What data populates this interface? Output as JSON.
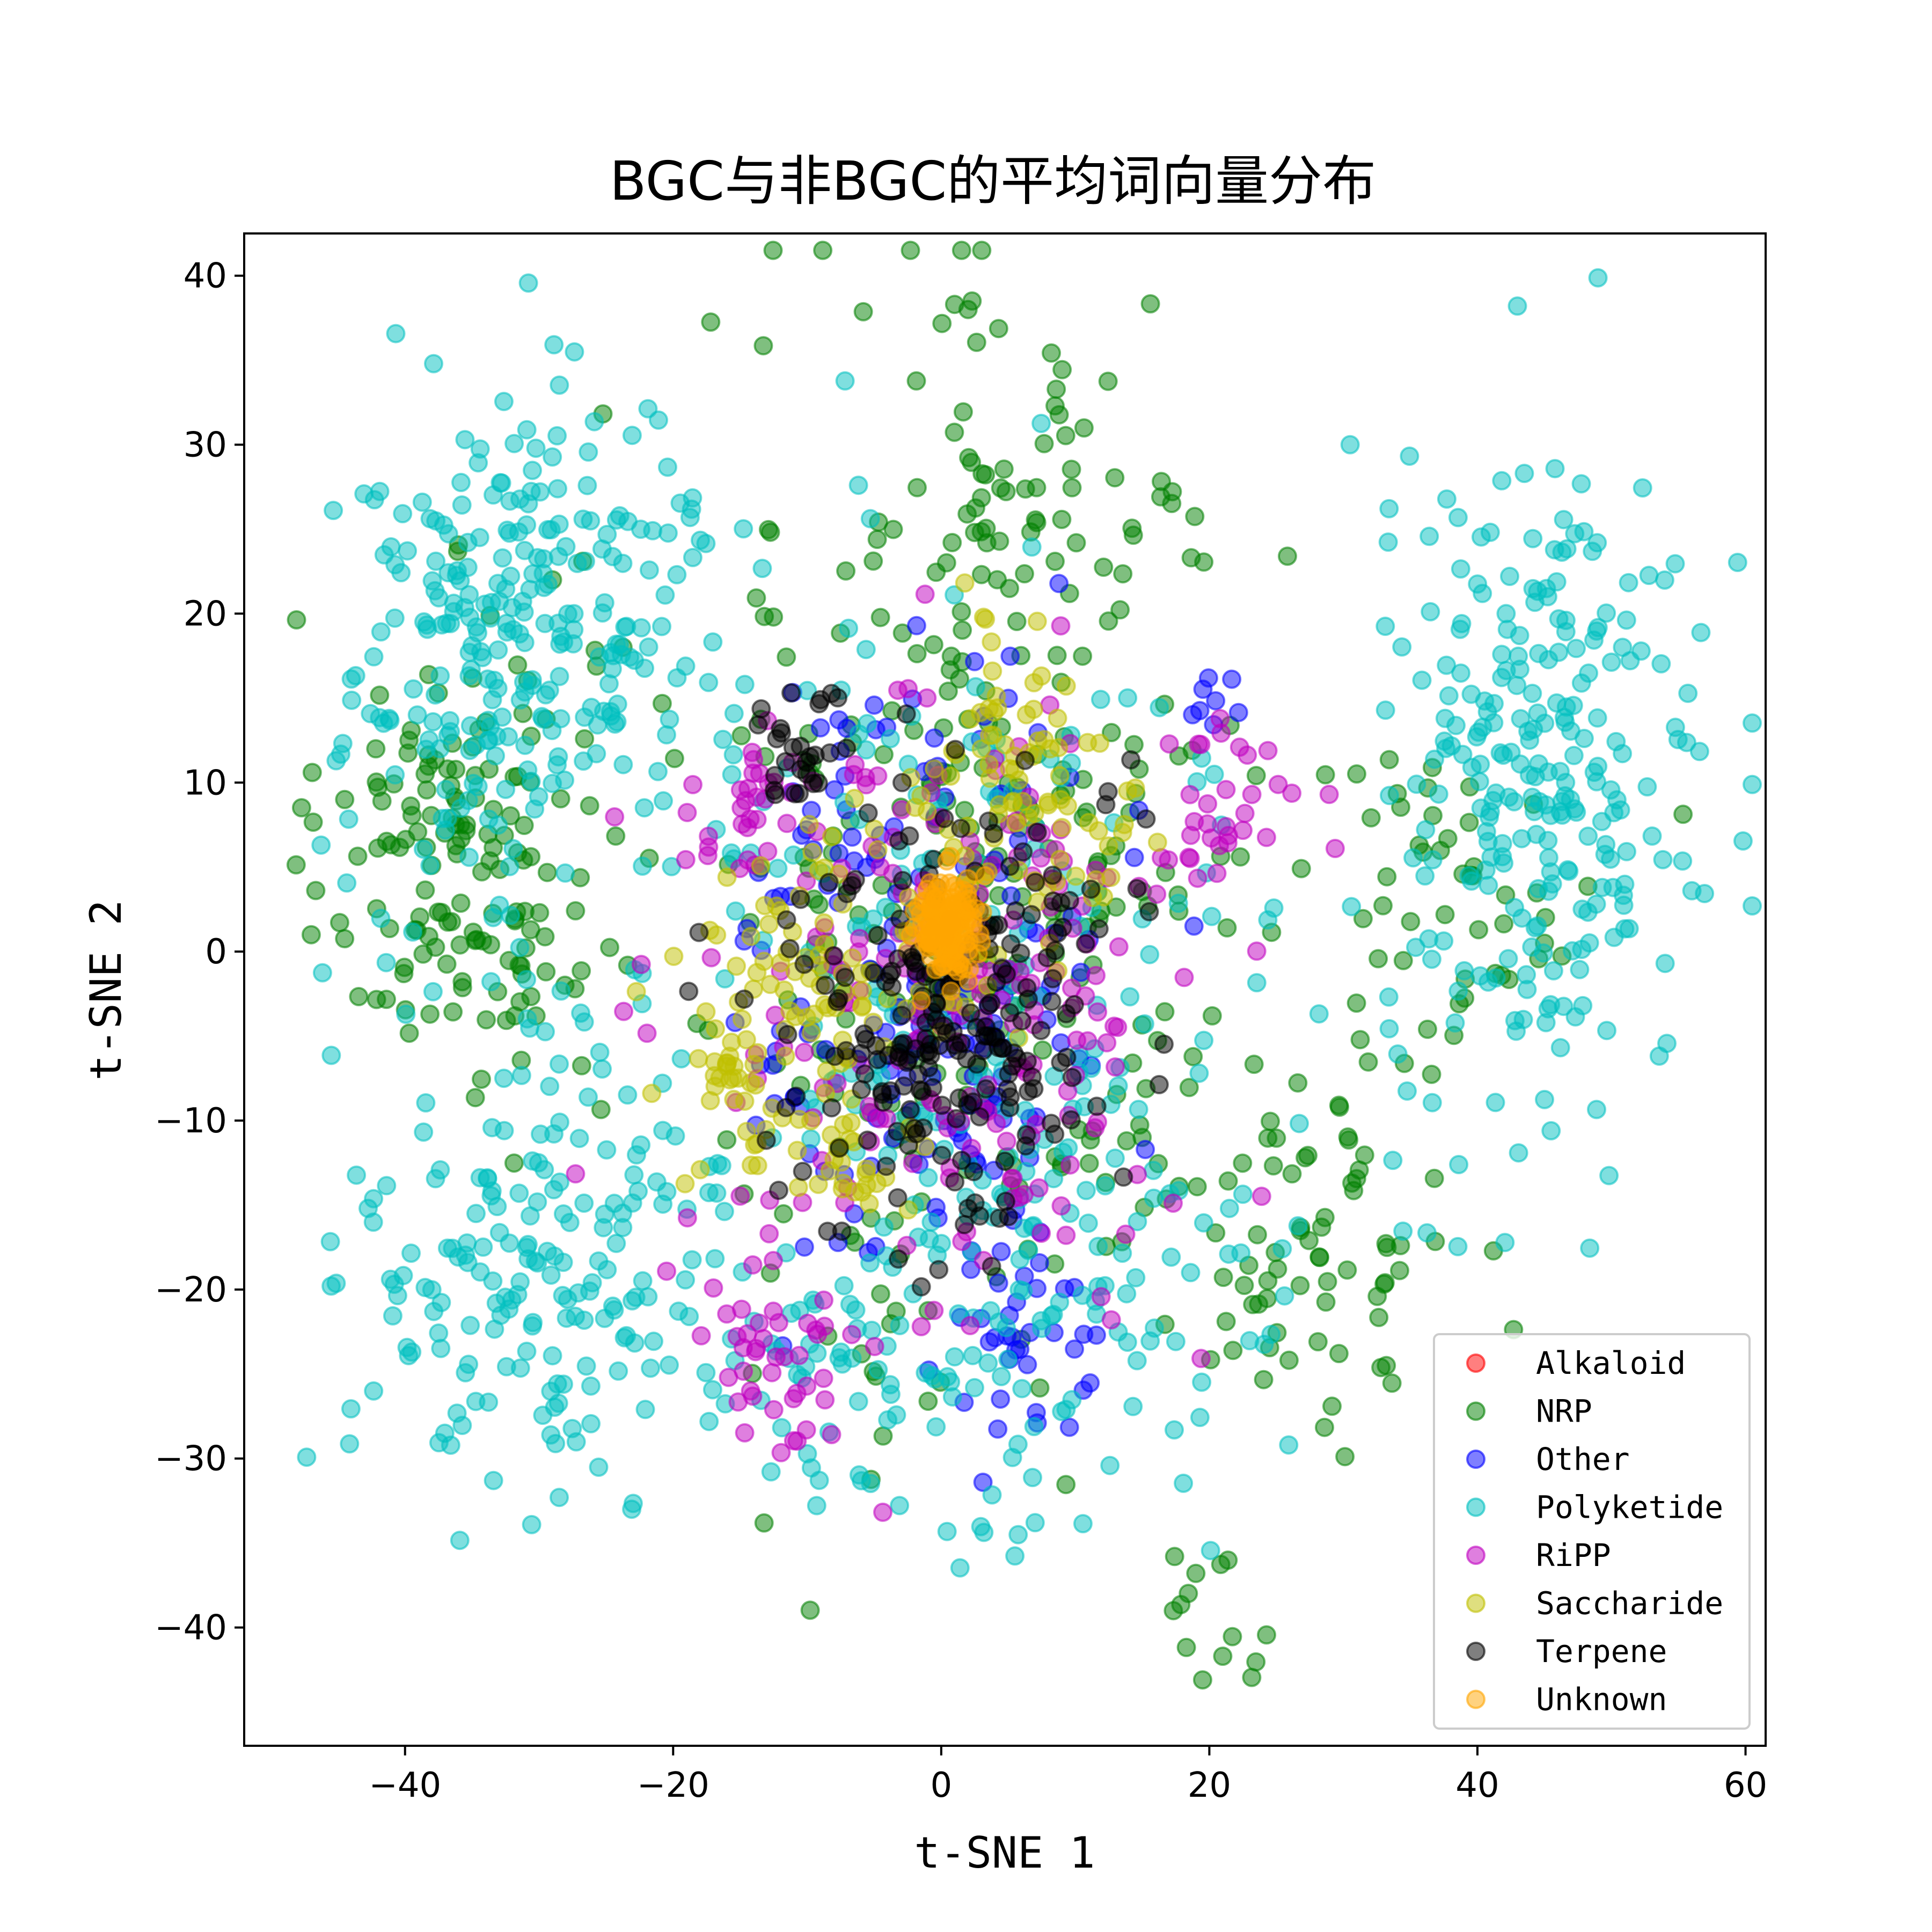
{
  "chart_data": {
    "type": "scatter",
    "title": "BGC与非BGC的平均词向量分布",
    "xlabel": "t-SNE 1",
    "ylabel": "t-SNE 2",
    "xlim": [
      -52,
      61.5
    ],
    "ylim": [
      -47,
      42.5
    ],
    "xticks": [
      -40,
      -20,
      0,
      20,
      40,
      60
    ],
    "yticks": [
      -40,
      -30,
      -20,
      -10,
      0,
      10,
      20,
      30,
      40
    ],
    "grid": false,
    "legend_position": "bottom-right",
    "series": [
      {
        "name": "Alkaloid",
        "color": "#ff0000",
        "clusters": []
      },
      {
        "name": "NRP",
        "color": "#008000",
        "clusters": [
          {
            "cx": -36,
            "cy": 6,
            "sx": 5,
            "sy": 7,
            "n": 150
          },
          {
            "cx": 3,
            "cy": 5,
            "sx": 11,
            "sy": 17,
            "n": 320
          },
          {
            "cx": 28,
            "cy": -17,
            "sx": 5,
            "sy": 6,
            "n": 70
          },
          {
            "cx": 38,
            "cy": 3,
            "sx": 6,
            "sy": 5,
            "n": 50
          },
          {
            "cx": 8,
            "cy": 28,
            "sx": 5,
            "sy": 3,
            "n": 25
          },
          {
            "cx": 20,
            "cy": -39,
            "sx": 2,
            "sy": 2,
            "n": 12
          }
        ],
        "points": [
          [
            1,
            38.3
          ],
          [
            2,
            38
          ],
          [
            2.3,
            38.5
          ],
          [
            19.5,
            -43.1
          ],
          [
            21,
            -41.7
          ],
          [
            -47,
            1
          ],
          [
            -44.5,
            9
          ],
          [
            -29,
            22
          ]
        ]
      },
      {
        "name": "Other",
        "color": "#0000ff",
        "clusters": [
          {
            "cx": -1,
            "cy": -1,
            "sx": 7,
            "sy": 9,
            "n": 180
          },
          {
            "cx": 6,
            "cy": -23,
            "sx": 3,
            "sy": 3,
            "n": 35
          },
          {
            "cx": 21,
            "cy": 15,
            "sx": 1.5,
            "sy": 1,
            "n": 8
          }
        ],
        "points": []
      },
      {
        "name": "Polyketide",
        "color": "#00bfbf",
        "clusters": [
          {
            "cx": -33,
            "cy": 17,
            "sx": 6,
            "sy": 8,
            "n": 230
          },
          {
            "cx": -30,
            "cy": -18,
            "sx": 7,
            "sy": 7,
            "n": 180
          },
          {
            "cx": 45,
            "cy": 10,
            "sx": 6,
            "sy": 9,
            "n": 260
          },
          {
            "cx": 4,
            "cy": -20,
            "sx": 13,
            "sy": 8,
            "n": 170
          },
          {
            "cx": 0,
            "cy": 3,
            "sx": 12,
            "sy": 12,
            "n": 150
          },
          {
            "cx": -7,
            "cy": -27,
            "sx": 4,
            "sy": 4,
            "n": 30
          },
          {
            "cx": -24,
            "cy": 22,
            "sx": 6,
            "sy": 5,
            "n": 50
          }
        ],
        "points": [
          [
            30.5,
            30
          ],
          [
            43.5,
            28.3
          ],
          [
            -39.5,
            -23.7
          ],
          [
            -33.4,
            -31.3
          ],
          [
            -28.5,
            -32.3
          ],
          [
            56,
            3.6
          ],
          [
            54,
            -0.7
          ]
        ]
      },
      {
        "name": "RiPP",
        "color": "#bf00bf",
        "clusters": [
          {
            "cx": 0,
            "cy": -4,
            "sx": 9,
            "sy": 9,
            "n": 200
          },
          {
            "cx": -12,
            "cy": -24,
            "sx": 3,
            "sy": 3,
            "n": 40
          },
          {
            "cx": 20,
            "cy": 8,
            "sx": 4,
            "sy": 3,
            "n": 35
          },
          {
            "cx": -14,
            "cy": 8,
            "sx": 2,
            "sy": 2,
            "n": 30
          }
        ],
        "points": []
      },
      {
        "name": "Saccharide",
        "color": "#bfbf00",
        "clusters": [
          {
            "cx": 7,
            "cy": 9,
            "sx": 4,
            "sy": 5,
            "n": 90
          },
          {
            "cx": -10,
            "cy": -3,
            "sx": 5,
            "sy": 5,
            "n": 110
          },
          {
            "cx": -16,
            "cy": -8,
            "sx": 1.5,
            "sy": 2,
            "n": 20
          },
          {
            "cx": -6,
            "cy": -13,
            "sx": 1.5,
            "sy": 1.5,
            "n": 15
          }
        ],
        "points": []
      },
      {
        "name": "Terpene",
        "color": "#000000",
        "clusters": [
          {
            "cx": 1,
            "cy": -3,
            "sx": 6,
            "sy": 7,
            "n": 230
          },
          {
            "cx": -11,
            "cy": 13,
            "sx": 1.5,
            "sy": 2,
            "n": 25
          }
        ],
        "points": [
          [
            2,
            -15.2
          ],
          [
            6.3,
            -11.5
          ]
        ]
      },
      {
        "name": "Unknown",
        "color": "#ffa500",
        "clusters": [
          {
            "cx": 0.5,
            "cy": 1.5,
            "sx": 1.2,
            "sy": 1.5,
            "n": 140
          }
        ],
        "points": []
      }
    ]
  }
}
